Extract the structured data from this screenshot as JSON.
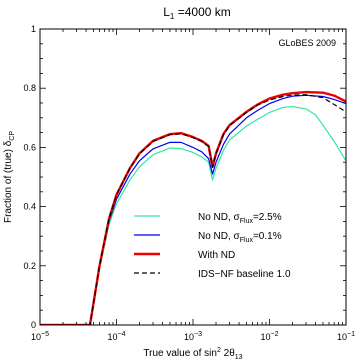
{
  "chart_data": {
    "type": "line",
    "title_parts": {
      "base": "L",
      "sub": "1",
      "rest": " =4000 km"
    },
    "annotation": "GLoBES 2009",
    "xlabel_parts": {
      "base": "True value of sin",
      "sup": "2",
      "mid": " 2θ",
      "sub": "13"
    },
    "ylabel_parts": {
      "base": "Fraction of (true) δ",
      "sub": "CP"
    },
    "x_scale": "log",
    "xlim": [
      1e-05,
      0.1
    ],
    "ylim": [
      0,
      1
    ],
    "x_ticks": [
      {
        "mantissa": "10",
        "exp": "−5"
      },
      {
        "mantissa": "10",
        "exp": "−4"
      },
      {
        "mantissa": "10",
        "exp": "−3"
      },
      {
        "mantissa": "10",
        "exp": "−2"
      },
      {
        "mantissa": "10",
        "exp": "−1"
      }
    ],
    "y_ticks": [
      "0",
      "0.2",
      "0.4",
      "0.6",
      "0.8",
      "1"
    ],
    "y_tick_values": [
      0,
      0.2,
      0.4,
      0.6,
      0.8,
      1
    ],
    "legend_position": "lower-right",
    "series": [
      {
        "name_parts": {
          "base": "No ND, σ",
          "sub": "Flux",
          "rest": "=2.5%"
        },
        "color": "#33e6a0",
        "dash": "solid",
        "points": [
          [
            1e-05,
            0
          ],
          [
            4.5e-05,
            0
          ],
          [
            5.2e-05,
            0.1
          ],
          [
            6e-05,
            0.19
          ],
          [
            8e-05,
            0.34
          ],
          [
            0.0001,
            0.41
          ],
          [
            0.00015,
            0.49
          ],
          [
            0.0002,
            0.535
          ],
          [
            0.0003,
            0.575
          ],
          [
            0.0005,
            0.598
          ],
          [
            0.0007,
            0.596
          ],
          [
            0.001,
            0.583
          ],
          [
            0.0013,
            0.568
          ],
          [
            0.0016,
            0.55
          ],
          [
            0.0018,
            0.49
          ],
          [
            0.002,
            0.53
          ],
          [
            0.0025,
            0.59
          ],
          [
            0.003,
            0.625
          ],
          [
            0.005,
            0.672
          ],
          [
            0.007,
            0.695
          ],
          [
            0.01,
            0.718
          ],
          [
            0.015,
            0.735
          ],
          [
            0.02,
            0.738
          ],
          [
            0.03,
            0.73
          ],
          [
            0.04,
            0.71
          ],
          [
            0.05,
            0.675
          ],
          [
            0.07,
            0.62
          ],
          [
            0.1,
            0.555
          ]
        ]
      },
      {
        "name_parts": {
          "base": "No ND, σ",
          "sub": "Flux",
          "rest": "=0.1%"
        },
        "color": "#0000ee",
        "dash": "solid",
        "points": [
          [
            1e-05,
            0
          ],
          [
            4.5e-05,
            0
          ],
          [
            5.2e-05,
            0.1
          ],
          [
            6e-05,
            0.2
          ],
          [
            8e-05,
            0.35
          ],
          [
            0.0001,
            0.425
          ],
          [
            0.00015,
            0.51
          ],
          [
            0.0002,
            0.555
          ],
          [
            0.0003,
            0.595
          ],
          [
            0.0005,
            0.617
          ],
          [
            0.0007,
            0.617
          ],
          [
            0.001,
            0.6
          ],
          [
            0.0013,
            0.585
          ],
          [
            0.0016,
            0.562
          ],
          [
            0.0018,
            0.51
          ],
          [
            0.002,
            0.55
          ],
          [
            0.0025,
            0.61
          ],
          [
            0.003,
            0.645
          ],
          [
            0.005,
            0.7
          ],
          [
            0.007,
            0.725
          ],
          [
            0.01,
            0.748
          ],
          [
            0.015,
            0.765
          ],
          [
            0.02,
            0.773
          ],
          [
            0.03,
            0.776
          ],
          [
            0.05,
            0.772
          ],
          [
            0.07,
            0.762
          ],
          [
            0.1,
            0.748
          ]
        ]
      },
      {
        "name_parts": {
          "base": "With ND",
          "sub": "",
          "rest": ""
        },
        "color": "#ee0000",
        "dash": "solid",
        "points": [
          [
            1e-05,
            0
          ],
          [
            4.5e-05,
            0
          ],
          [
            5.2e-05,
            0.1
          ],
          [
            6e-05,
            0.2
          ],
          [
            8e-05,
            0.36
          ],
          [
            0.0001,
            0.44
          ],
          [
            0.00015,
            0.53
          ],
          [
            0.0002,
            0.58
          ],
          [
            0.0003,
            0.622
          ],
          [
            0.0005,
            0.645
          ],
          [
            0.0007,
            0.648
          ],
          [
            0.001,
            0.635
          ],
          [
            0.0013,
            0.622
          ],
          [
            0.0016,
            0.605
          ],
          [
            0.0018,
            0.535
          ],
          [
            0.002,
            0.58
          ],
          [
            0.0025,
            0.645
          ],
          [
            0.003,
            0.675
          ],
          [
            0.005,
            0.72
          ],
          [
            0.007,
            0.745
          ],
          [
            0.01,
            0.765
          ],
          [
            0.015,
            0.778
          ],
          [
            0.02,
            0.783
          ],
          [
            0.03,
            0.787
          ],
          [
            0.05,
            0.785
          ],
          [
            0.07,
            0.775
          ],
          [
            0.1,
            0.755
          ]
        ]
      },
      {
        "name_parts": {
          "base": "IDS−NF baseline 1.0",
          "sub": "",
          "rest": ""
        },
        "color": "#000000",
        "dash": "dashed",
        "points": [
          [
            1e-05,
            0
          ],
          [
            4.5e-05,
            0
          ],
          [
            5.2e-05,
            0.1
          ],
          [
            6e-05,
            0.2
          ],
          [
            8e-05,
            0.36
          ],
          [
            0.0001,
            0.44
          ],
          [
            0.00015,
            0.53
          ],
          [
            0.0002,
            0.578
          ],
          [
            0.0003,
            0.62
          ],
          [
            0.0005,
            0.643
          ],
          [
            0.0007,
            0.646
          ],
          [
            0.001,
            0.633
          ],
          [
            0.0013,
            0.62
          ],
          [
            0.0016,
            0.603
          ],
          [
            0.0018,
            0.533
          ],
          [
            0.002,
            0.578
          ],
          [
            0.0025,
            0.643
          ],
          [
            0.003,
            0.673
          ],
          [
            0.005,
            0.718
          ],
          [
            0.007,
            0.743
          ],
          [
            0.01,
            0.76
          ],
          [
            0.015,
            0.772
          ],
          [
            0.02,
            0.777
          ],
          [
            0.03,
            0.778
          ],
          [
            0.05,
            0.768
          ],
          [
            0.07,
            0.745
          ],
          [
            0.1,
            0.72
          ]
        ]
      }
    ]
  }
}
